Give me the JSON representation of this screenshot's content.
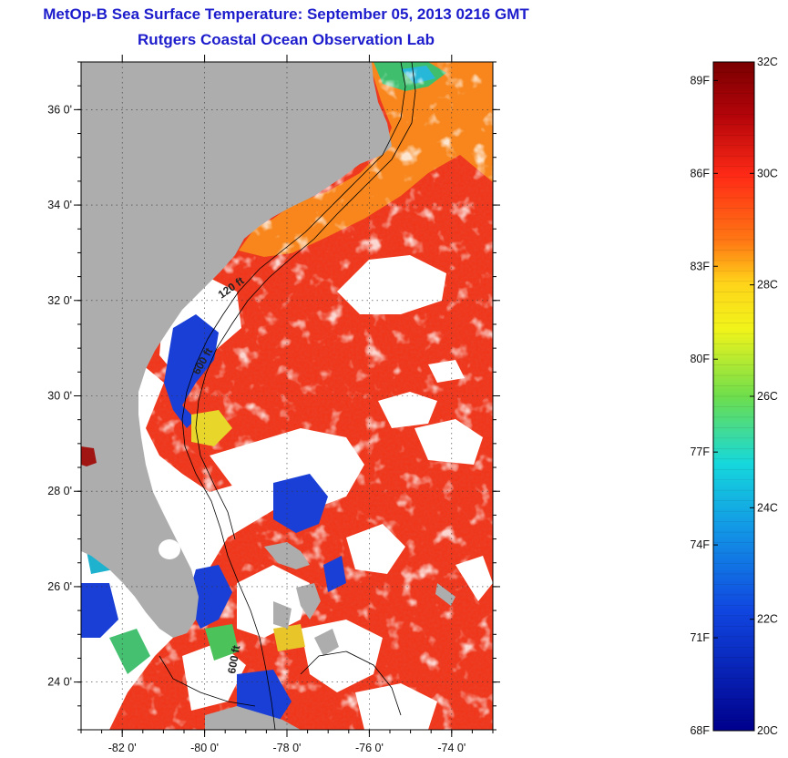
{
  "title": "MetOp-B Sea Surface Temperature:  September 05, 2013 0216 GMT",
  "subtitle": "Rutgers Coastal Ocean Observation Lab",
  "map": {
    "lon_range": [
      -83.0,
      -73.0
    ],
    "lat_range": [
      23.0,
      37.0
    ],
    "lon_ticks": [
      {
        "value": -82,
        "label": "-82 0'"
      },
      {
        "value": -80,
        "label": "-80 0'"
      },
      {
        "value": -78,
        "label": "-78 0'"
      },
      {
        "value": -76,
        "label": "-76 0'"
      },
      {
        "value": -74,
        "label": "-74 0'"
      }
    ],
    "lat_ticks": [
      {
        "value": 24,
        "label": "24 0'"
      },
      {
        "value": 26,
        "label": "26 0'"
      },
      {
        "value": 28,
        "label": "28 0'"
      },
      {
        "value": 30,
        "label": "30 0'"
      },
      {
        "value": 32,
        "label": "32 0'"
      },
      {
        "value": 34,
        "label": "34 0'"
      },
      {
        "value": 36,
        "label": "36 0'"
      }
    ],
    "isobath_labels": [
      "120 ft",
      "600 ft",
      "600 ft"
    ],
    "colors": {
      "land": "#adadad",
      "cloud": "#ffffff",
      "warm_sst": "#f0361a",
      "hot_sst": "#e8281a",
      "shelf_warm": "#f8861c",
      "cool_sst": "#1a3fd6",
      "contour": "#000000"
    }
  },
  "colorbar": {
    "range_c": [
      20,
      32
    ],
    "celsius_labels": [
      "32C",
      "30C",
      "28C",
      "26C",
      "24C",
      "22C",
      "20C"
    ],
    "fahrenheit_labels": [
      "89F",
      "86F",
      "83F",
      "80F",
      "77F",
      "74F",
      "71F",
      "68F"
    ]
  }
}
